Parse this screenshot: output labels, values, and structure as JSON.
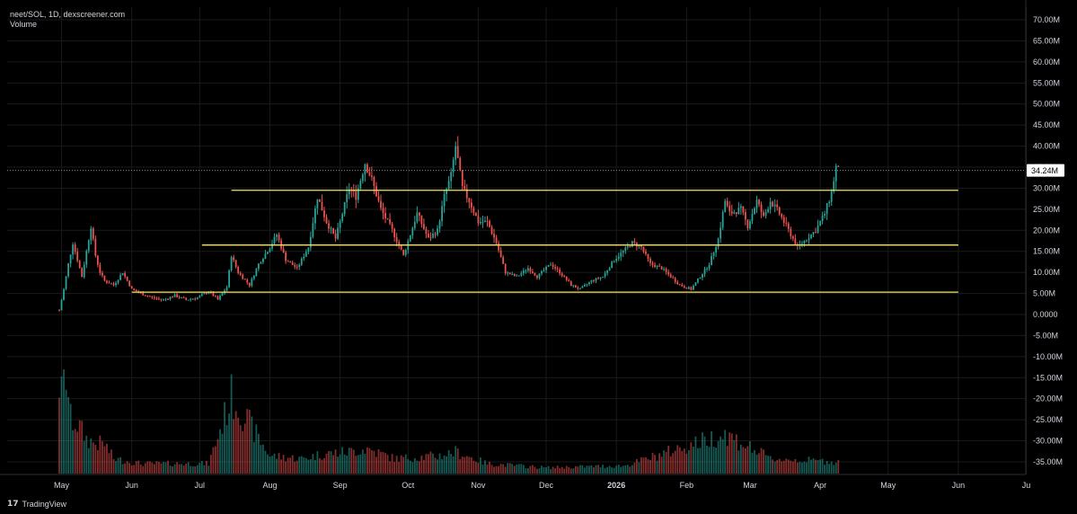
{
  "legend": {
    "symbol_line": "neet/SOL, 1D, dexscreener.com",
    "volume_label": "Volume"
  },
  "branding": {
    "logo_text": "17",
    "name": "TradingView"
  },
  "colors": {
    "background": "#000000",
    "up": "#26a69a",
    "down": "#ef5350",
    "level_line": "#f5e36b",
    "text": "#d1d4dc",
    "grid": "#1a1a1a"
  },
  "chart_data": {
    "type": "candlestick",
    "title": "neet/SOL, 1D, dexscreener.com",
    "y_unit": "M",
    "yticks": [
      "70.00M",
      "65.00M",
      "60.00M",
      "55.00M",
      "50.00M",
      "45.00M",
      "40.00M",
      "35.00M",
      "30.00M",
      "25.00M",
      "20.00M",
      "15.00M",
      "10.00M",
      "5.00M",
      "0.0000",
      "-5.00M",
      "-10.00M",
      "-15.00M",
      "-20.00M",
      "-25.00M",
      "-30.00M",
      "-35.00M"
    ],
    "ylim": [
      -38,
      73
    ],
    "xticks": [
      "May",
      "Jun",
      "Jul",
      "Aug",
      "Sep",
      "Oct",
      "Nov",
      "Dec",
      "2026",
      "Feb",
      "Mar",
      "Apr",
      "May",
      "Jun",
      "Ju"
    ],
    "x_start": "2025-04-30",
    "x_end": "2026-06-30",
    "last_price_label": "34.24M",
    "last_price": 34.24,
    "horizontal_levels": [
      {
        "value": 29.5,
        "from": "2025-07-15",
        "to": "2026-06-01"
      },
      {
        "value": 16.5,
        "from": "2025-07-02",
        "to": "2026-06-01"
      },
      {
        "value": 5.3,
        "from": "2025-06-01",
        "to": "2026-06-01"
      }
    ],
    "price_keypoints": [
      [
        "2025-04-30",
        1.0
      ],
      [
        "2025-05-02",
        6
      ],
      [
        "2025-05-04",
        12
      ],
      [
        "2025-05-06",
        17
      ],
      [
        "2025-05-08",
        13
      ],
      [
        "2025-05-10",
        9
      ],
      [
        "2025-05-12",
        15
      ],
      [
        "2025-05-14",
        21
      ],
      [
        "2025-05-16",
        14
      ],
      [
        "2025-05-18",
        10
      ],
      [
        "2025-05-20",
        8
      ],
      [
        "2025-05-24",
        7
      ],
      [
        "2025-05-28",
        10
      ],
      [
        "2025-06-01",
        6
      ],
      [
        "2025-06-05",
        5
      ],
      [
        "2025-06-10",
        4
      ],
      [
        "2025-06-15",
        3.5
      ],
      [
        "2025-06-20",
        4.5
      ],
      [
        "2025-06-25",
        3.5
      ],
      [
        "2025-06-30",
        4
      ],
      [
        "2025-07-05",
        5.5
      ],
      [
        "2025-07-09",
        3.5
      ],
      [
        "2025-07-13",
        6.5
      ],
      [
        "2025-07-15",
        14
      ],
      [
        "2025-07-18",
        10
      ],
      [
        "2025-07-23",
        7
      ],
      [
        "2025-07-27",
        12
      ],
      [
        "2025-08-01",
        16
      ],
      [
        "2025-08-04",
        19
      ],
      [
        "2025-08-08",
        13
      ],
      [
        "2025-08-13",
        11
      ],
      [
        "2025-08-18",
        16
      ],
      [
        "2025-08-22",
        28
      ],
      [
        "2025-08-26",
        22
      ],
      [
        "2025-08-30",
        18
      ],
      [
        "2025-09-02",
        24
      ],
      [
        "2025-09-05",
        30
      ],
      [
        "2025-09-08",
        28
      ],
      [
        "2025-09-12",
        36
      ],
      [
        "2025-09-15",
        32
      ],
      [
        "2025-09-19",
        25
      ],
      [
        "2025-09-24",
        20
      ],
      [
        "2025-09-29",
        14
      ],
      [
        "2025-10-02",
        19
      ],
      [
        "2025-10-05",
        24
      ],
      [
        "2025-10-10",
        18
      ],
      [
        "2025-10-14",
        20
      ],
      [
        "2025-10-17",
        28
      ],
      [
        "2025-10-20",
        33
      ],
      [
        "2025-10-22",
        40
      ],
      [
        "2025-10-25",
        30
      ],
      [
        "2025-10-28",
        27
      ],
      [
        "2025-11-01",
        22
      ],
      [
        "2025-11-05",
        22
      ],
      [
        "2025-11-09",
        17
      ],
      [
        "2025-11-13",
        10
      ],
      [
        "2025-11-18",
        9
      ],
      [
        "2025-11-23",
        11
      ],
      [
        "2025-11-27",
        9
      ],
      [
        "2025-12-03",
        12
      ],
      [
        "2025-12-07",
        10
      ],
      [
        "2025-12-12",
        7
      ],
      [
        "2025-12-16",
        6
      ],
      [
        "2025-12-21",
        8
      ],
      [
        "2025-12-26",
        9
      ],
      [
        "2025-12-31",
        13
      ],
      [
        "2026-01-04",
        15
      ],
      [
        "2026-01-08",
        17
      ],
      [
        "2026-01-12",
        16
      ],
      [
        "2026-01-16",
        12
      ],
      [
        "2026-01-21",
        11
      ],
      [
        "2026-01-25",
        9
      ],
      [
        "2026-01-29",
        7
      ],
      [
        "2026-02-03",
        6
      ],
      [
        "2026-02-07",
        9
      ],
      [
        "2026-02-11",
        12
      ],
      [
        "2026-02-15",
        18
      ],
      [
        "2026-02-18",
        27
      ],
      [
        "2026-02-20",
        24
      ],
      [
        "2026-02-25",
        25
      ],
      [
        "2026-02-28",
        21
      ],
      [
        "2026-03-04",
        27
      ],
      [
        "2026-03-07",
        23
      ],
      [
        "2026-03-10",
        27
      ],
      [
        "2026-03-14",
        24
      ],
      [
        "2026-03-18",
        20
      ],
      [
        "2026-03-22",
        16
      ],
      [
        "2026-03-26",
        18
      ],
      [
        "2026-03-30",
        20
      ],
      [
        "2026-04-03",
        24
      ],
      [
        "2026-04-06",
        29
      ],
      [
        "2026-04-08",
        35
      ],
      [
        "2026-04-09",
        34.24
      ]
    ],
    "volume_peaks": [
      [
        "2025-04-30",
        0.9
      ],
      [
        "2025-05-01",
        0.8
      ],
      [
        "2025-05-03",
        1.0
      ],
      [
        "2025-05-05",
        0.55
      ],
      [
        "2025-05-08",
        0.5
      ],
      [
        "2025-05-12",
        0.35
      ],
      [
        "2025-05-16",
        0.3
      ],
      [
        "2025-05-20",
        0.3
      ],
      [
        "2025-05-24",
        0.15
      ],
      [
        "2025-06-05",
        0.1
      ],
      [
        "2025-06-20",
        0.1
      ],
      [
        "2025-07-05",
        0.1
      ],
      [
        "2025-07-15",
        0.78
      ],
      [
        "2025-08-01",
        0.18
      ],
      [
        "2025-08-15",
        0.15
      ],
      [
        "2025-08-25",
        0.2
      ],
      [
        "2025-09-05",
        0.22
      ],
      [
        "2025-09-13",
        0.25
      ],
      [
        "2025-09-25",
        0.15
      ],
      [
        "2025-10-15",
        0.18
      ],
      [
        "2025-10-22",
        0.22
      ],
      [
        "2025-11-05",
        0.1
      ],
      [
        "2025-12-01",
        0.06
      ],
      [
        "2026-01-05",
        0.08
      ],
      [
        "2026-02-18",
        0.4
      ],
      [
        "2026-03-10",
        0.15
      ],
      [
        "2026-04-08",
        0.12
      ]
    ]
  }
}
